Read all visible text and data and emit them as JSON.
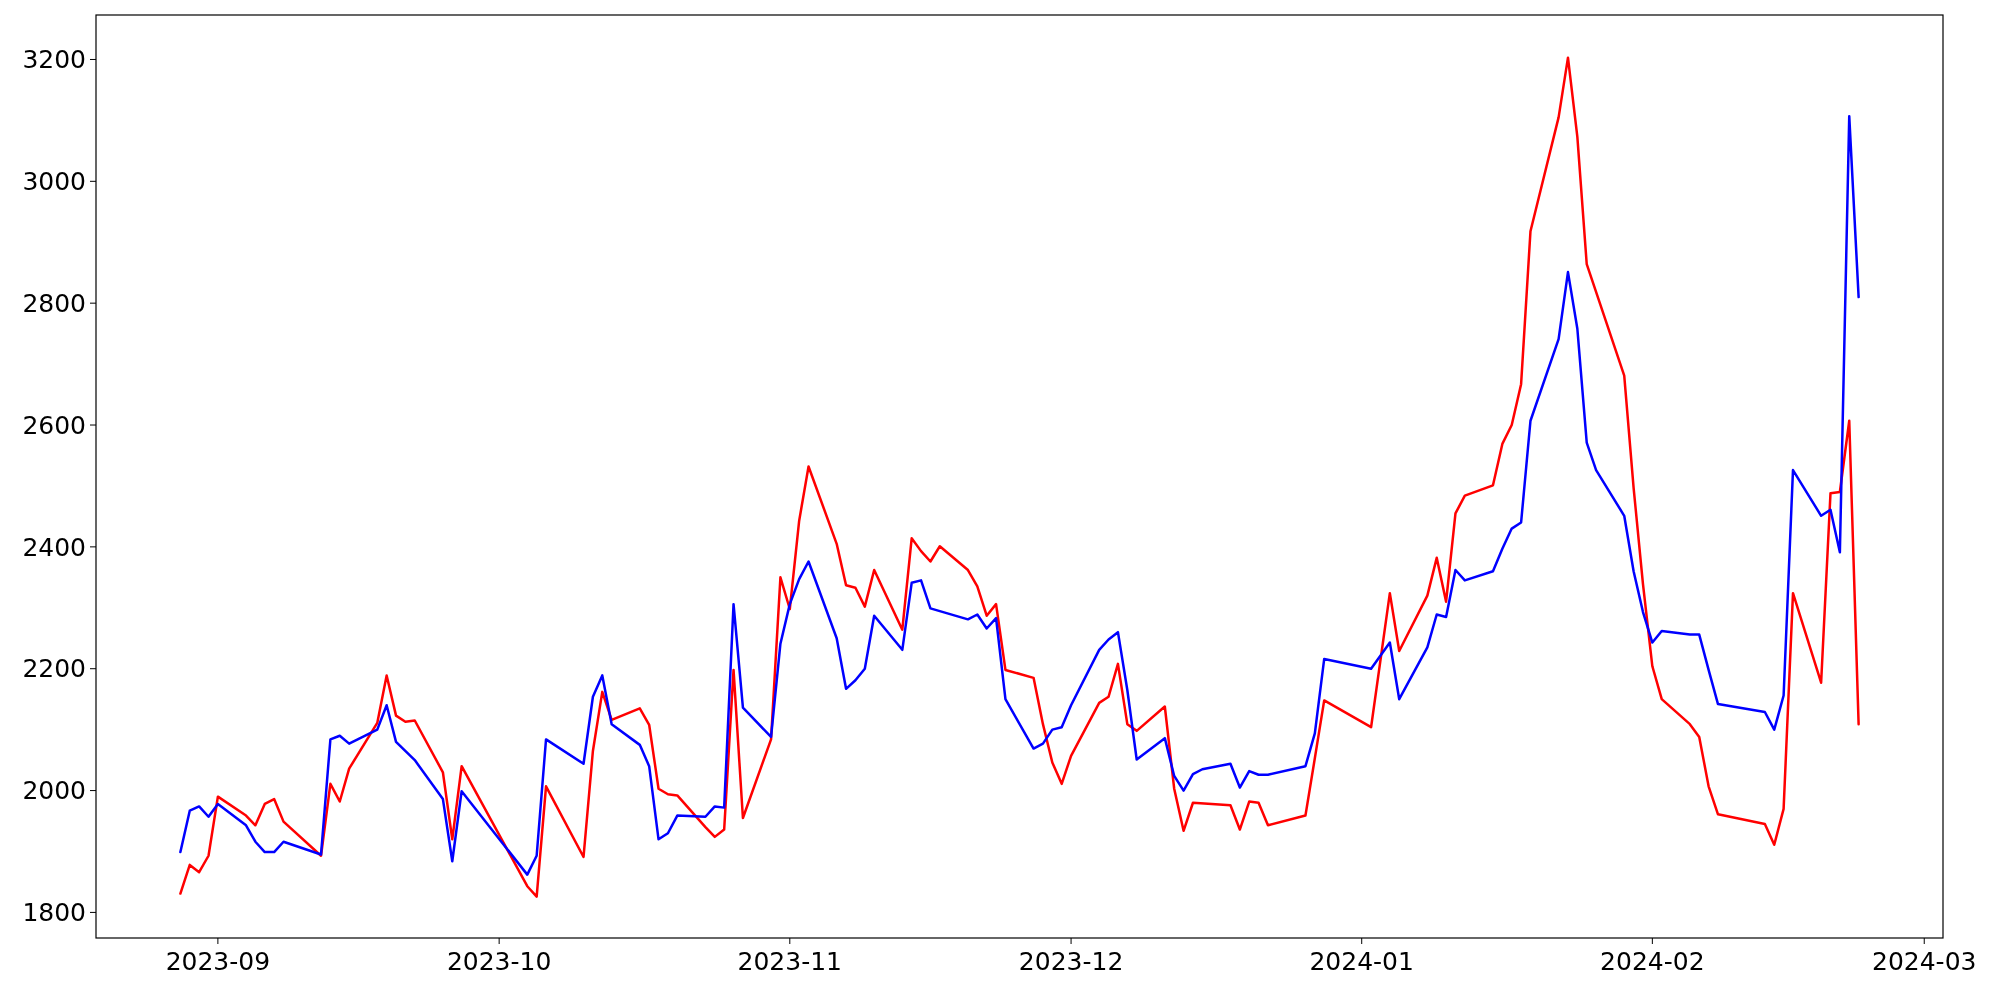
{
  "chart_data": {
    "type": "line",
    "xlim": [
      "2023-08-19",
      "2024-03-03"
    ],
    "ylim": [
      1758,
      3273
    ],
    "xticks": [
      {
        "value": "2023-09-01",
        "label": "2023-09"
      },
      {
        "value": "2023-10-01",
        "label": "2023-10"
      },
      {
        "value": "2023-11-01",
        "label": "2023-11"
      },
      {
        "value": "2023-12-01",
        "label": "2023-12"
      },
      {
        "value": "2024-01-01",
        "label": "2024-01"
      },
      {
        "value": "2024-02-01",
        "label": "2024-02"
      },
      {
        "value": "2024-03-01",
        "label": "2024-03"
      }
    ],
    "yticks": [
      1800,
      2000,
      2200,
      2400,
      2600,
      2800,
      3000,
      3200
    ],
    "grid": false,
    "marker": "none",
    "line_style": "solid",
    "series": [
      {
        "color": "#ff0000",
        "x": [
          "2023-08-28",
          "2023-08-29",
          "2023-08-30",
          "2023-08-31",
          "2023-09-01",
          "2023-09-04",
          "2023-09-05",
          "2023-09-06",
          "2023-09-07",
          "2023-09-08",
          "2023-09-12",
          "2023-09-13",
          "2023-09-14",
          "2023-09-15",
          "2023-09-18",
          "2023-09-19",
          "2023-09-20",
          "2023-09-21",
          "2023-09-22",
          "2023-09-25",
          "2023-09-26",
          "2023-09-27",
          "2023-10-04",
          "2023-10-05",
          "2023-10-06",
          "2023-10-10",
          "2023-10-11",
          "2023-10-12",
          "2023-10-13",
          "2023-10-16",
          "2023-10-17",
          "2023-10-18",
          "2023-10-19",
          "2023-10-20",
          "2023-10-23",
          "2023-10-24",
          "2023-10-25",
          "2023-10-26",
          "2023-10-27",
          "2023-10-30",
          "2023-10-31",
          "2023-11-01",
          "2023-11-02",
          "2023-11-03",
          "2023-11-06",
          "2023-11-07",
          "2023-11-08",
          "2023-11-09",
          "2023-11-10",
          "2023-11-13",
          "2023-11-14",
          "2023-11-15",
          "2023-11-16",
          "2023-11-17",
          "2023-11-20",
          "2023-11-21",
          "2023-11-22",
          "2023-11-23",
          "2023-11-24",
          "2023-11-27",
          "2023-11-28",
          "2023-11-29",
          "2023-11-30",
          "2023-12-01",
          "2023-12-04",
          "2023-12-05",
          "2023-12-06",
          "2023-12-07",
          "2023-12-08",
          "2023-12-11",
          "2023-12-12",
          "2023-12-13",
          "2023-12-14",
          "2023-12-18",
          "2023-12-19",
          "2023-12-20",
          "2023-12-21",
          "2023-12-22",
          "2023-12-26",
          "2023-12-27",
          "2023-12-28",
          "2024-01-02",
          "2024-01-04",
          "2024-01-05",
          "2024-01-08",
          "2024-01-09",
          "2024-01-10",
          "2024-01-11",
          "2024-01-12",
          "2024-01-15",
          "2024-01-16",
          "2024-01-17",
          "2024-01-18",
          "2024-01-19",
          "2024-01-22",
          "2024-01-23",
          "2024-01-24",
          "2024-01-25",
          "2024-01-29",
          "2024-01-30",
          "2024-01-31",
          "2024-02-01",
          "2024-02-02",
          "2024-02-05",
          "2024-02-06",
          "2024-02-07",
          "2024-02-08",
          "2024-02-13",
          "2024-02-14",
          "2024-02-15",
          "2024-02-16",
          "2024-02-19",
          "2024-02-20",
          "2024-02-21",
          "2024-02-22",
          "2024-02-23"
        ],
        "values": [
          1831,
          1878,
          1866,
          1893,
          1990,
          1959,
          1943,
          1978,
          1986,
          1949,
          1893,
          2011,
          1982,
          2036,
          2111,
          2189,
          2123,
          2113,
          2115,
          2030,
          1920,
          2040,
          1843,
          1826,
          2007,
          1891,
          2065,
          2162,
          2116,
          2135,
          2108,
          2003,
          1994,
          1992,
          1940,
          1924,
          1936,
          2198,
          1955,
          2084,
          2350,
          2298,
          2443,
          2532,
          2405,
          2337,
          2333,
          2302,
          2362,
          2264,
          2414,
          2393,
          2376,
          2401,
          2362,
          2335,
          2287,
          2306,
          2198,
          2185,
          2109,
          2046,
          2011,
          2057,
          2144,
          2154,
          2208,
          2109,
          2098,
          2138,
          2003,
          1934,
          1980,
          1976,
          1936,
          1982,
          1980,
          1943,
          1959,
          2053,
          2148,
          2104,
          2324,
          2229,
          2320,
          2382,
          2310,
          2455,
          2484,
          2501,
          2569,
          2600,
          2667,
          2918,
          3105,
          3203,
          3073,
          2864,
          2681,
          2497,
          2339,
          2204,
          2150,
          2109,
          2088,
          2007,
          1961,
          1945,
          1911,
          1970,
          2324,
          2177,
          2488,
          2490,
          2607,
          2109
        ]
      },
      {
        "color": "#0000ff",
        "x": [
          "2023-08-28",
          "2023-08-29",
          "2023-08-30",
          "2023-08-31",
          "2023-09-01",
          "2023-09-04",
          "2023-09-05",
          "2023-09-06",
          "2023-09-07",
          "2023-09-08",
          "2023-09-12",
          "2023-09-13",
          "2023-09-14",
          "2023-09-15",
          "2023-09-18",
          "2023-09-19",
          "2023-09-20",
          "2023-09-22",
          "2023-09-25",
          "2023-09-26",
          "2023-09-27",
          "2023-10-04",
          "2023-10-05",
          "2023-10-06",
          "2023-10-10",
          "2023-10-11",
          "2023-10-12",
          "2023-10-13",
          "2023-10-16",
          "2023-10-17",
          "2023-10-18",
          "2023-10-19",
          "2023-10-20",
          "2023-10-23",
          "2023-10-24",
          "2023-10-25",
          "2023-10-26",
          "2023-10-27",
          "2023-10-30",
          "2023-10-31",
          "2023-11-01",
          "2023-11-02",
          "2023-11-03",
          "2023-11-06",
          "2023-11-07",
          "2023-11-08",
          "2023-11-09",
          "2023-11-10",
          "2023-11-13",
          "2023-11-14",
          "2023-11-15",
          "2023-11-16",
          "2023-11-20",
          "2023-11-21",
          "2023-11-22",
          "2023-11-23",
          "2023-11-24",
          "2023-11-27",
          "2023-11-28",
          "2023-11-29",
          "2023-11-30",
          "2023-12-01",
          "2023-12-04",
          "2023-12-05",
          "2023-12-06",
          "2023-12-07",
          "2023-12-08",
          "2023-12-11",
          "2023-12-12",
          "2023-12-13",
          "2023-12-14",
          "2023-12-15",
          "2023-12-18",
          "2023-12-19",
          "2023-12-20",
          "2023-12-21",
          "2023-12-22",
          "2023-12-26",
          "2023-12-27",
          "2023-12-28",
          "2024-01-02",
          "2024-01-04",
          "2024-01-05",
          "2024-01-08",
          "2024-01-09",
          "2024-01-10",
          "2024-01-11",
          "2024-01-12",
          "2024-01-15",
          "2024-01-16",
          "2024-01-17",
          "2024-01-18",
          "2024-01-19",
          "2024-01-22",
          "2024-01-23",
          "2024-01-24",
          "2024-01-25",
          "2024-01-26",
          "2024-01-29",
          "2024-01-30",
          "2024-01-31",
          "2024-02-01",
          "2024-02-02",
          "2024-02-05",
          "2024-02-06",
          "2024-02-07",
          "2024-02-08",
          "2024-02-13",
          "2024-02-14",
          "2024-02-15",
          "2024-02-16",
          "2024-02-19",
          "2024-02-20",
          "2024-02-21",
          "2024-02-22",
          "2024-02-23"
        ],
        "values": [
          1899,
          1967,
          1974,
          1957,
          1978,
          1943,
          1916,
          1899,
          1899,
          1916,
          1895,
          2084,
          2090,
          2077,
          2100,
          2140,
          2080,
          2050,
          1986,
          1884,
          1999,
          1862,
          1893,
          2084,
          2044,
          2154,
          2189,
          2109,
          2075,
          2040,
          1920,
          1930,
          1959,
          1957,
          1974,
          1972,
          2306,
          2136,
          2088,
          2241,
          2306,
          2347,
          2376,
          2250,
          2167,
          2181,
          2200,
          2287,
          2231,
          2341,
          2345,
          2299,
          2281,
          2289,
          2266,
          2283,
          2150,
          2069,
          2077,
          2100,
          2104,
          2140,
          2231,
          2248,
          2260,
          2165,
          2051,
          2086,
          2024,
          2000,
          2027,
          2035,
          2044,
          2005,
          2032,
          2026,
          2026,
          2040,
          2094,
          2216,
          2200,
          2243,
          2150,
          2235,
          2289,
          2285,
          2362,
          2345,
          2360,
          2397,
          2430,
          2440,
          2607,
          2741,
          2851,
          2758,
          2571,
          2526,
          2451,
          2360,
          2293,
          2243,
          2262,
          2256,
          2256,
          2198,
          2142,
          2129,
          2100,
          2156,
          2526,
          2451,
          2461,
          2391,
          3107,
          2810
        ]
      }
    ]
  }
}
